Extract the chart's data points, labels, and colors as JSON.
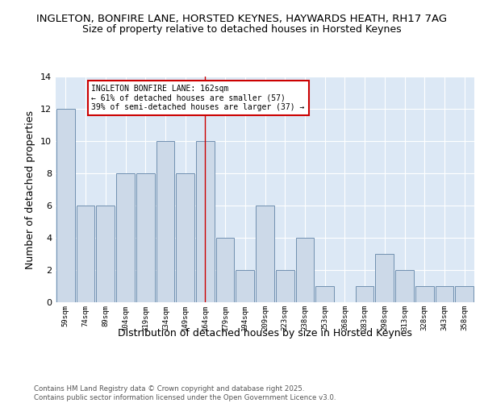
{
  "title1": "INGLETON, BONFIRE LANE, HORSTED KEYNES, HAYWARDS HEATH, RH17 7AG",
  "title2": "Size of property relative to detached houses in Horsted Keynes",
  "xlabel": "Distribution of detached houses by size in Horsted Keynes",
  "ylabel": "Number of detached properties",
  "categories": [
    "59sqm",
    "74sqm",
    "89sqm",
    "104sqm",
    "119sqm",
    "134sqm",
    "149sqm",
    "164sqm",
    "179sqm",
    "194sqm",
    "209sqm",
    "223sqm",
    "238sqm",
    "253sqm",
    "268sqm",
    "283sqm",
    "298sqm",
    "313sqm",
    "328sqm",
    "343sqm",
    "358sqm"
  ],
  "values": [
    12,
    6,
    6,
    8,
    8,
    10,
    8,
    10,
    4,
    2,
    6,
    2,
    4,
    1,
    0,
    1,
    3,
    2,
    1,
    1,
    1
  ],
  "bar_color": "#ccd9e8",
  "bar_edge_color": "#7090b0",
  "highlight_index": 7,
  "annotation_text": "INGLETON BONFIRE LANE: 162sqm\n← 61% of detached houses are smaller (57)\n39% of semi-detached houses are larger (37) →",
  "annotation_box_color": "#ffffff",
  "annotation_box_edge": "#cc0000",
  "vline_color": "#cc0000",
  "ylim": [
    0,
    14
  ],
  "background_color": "#dce8f5",
  "footer_text": "Contains HM Land Registry data © Crown copyright and database right 2025.\nContains public sector information licensed under the Open Government Licence v3.0.",
  "title_fontsize": 9.5,
  "subtitle_fontsize": 9,
  "xlabel_fontsize": 9,
  "ylabel_fontsize": 9,
  "tick_fontsize": 8,
  "xtick_fontsize": 6.5
}
